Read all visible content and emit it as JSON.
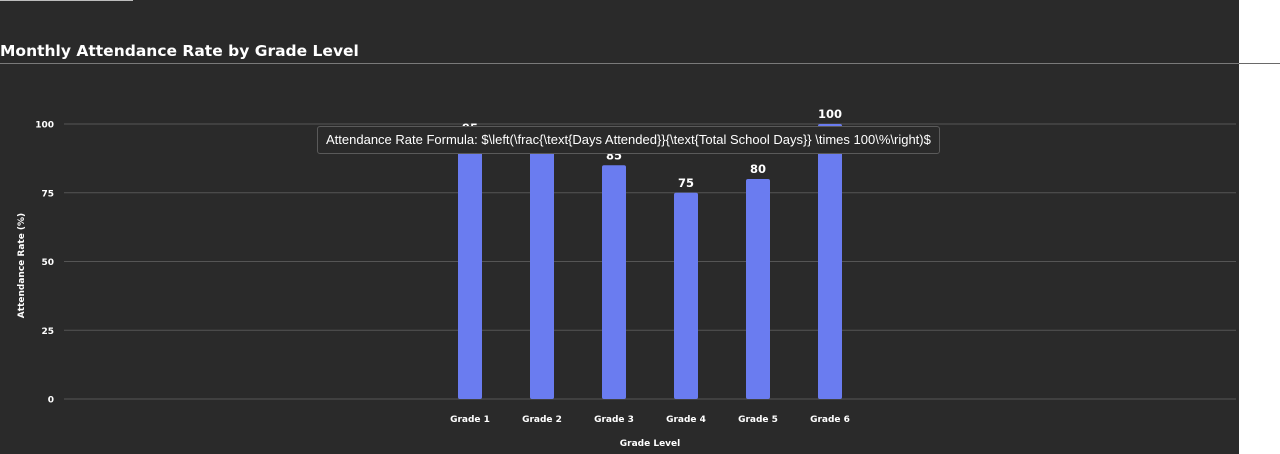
{
  "title": "Monthly Attendance Rate by Grade Level",
  "tooltip": "Attendance Rate Formula: $\\left(\\frac{\\text{Days Attended}}{\\text{Total School Days}} \\times 100\\%\\right)$",
  "colors": {
    "background": "#2a2a2a",
    "bar": "#6a7cf0",
    "grid": "#555555",
    "text": "#ffffff"
  },
  "chart_data": {
    "type": "bar",
    "categories": [
      "Grade 1",
      "Grade 2",
      "Grade 3",
      "Grade 4",
      "Grade 5",
      "Grade 6"
    ],
    "values": [
      95,
      92,
      85,
      75,
      80,
      100
    ],
    "title": "Monthly Attendance Rate by Grade Level",
    "xlabel": "Grade Level",
    "ylabel": "Attendance Rate (%)",
    "ylim": [
      0,
      100
    ],
    "yticks": [
      0,
      25,
      50,
      75,
      100
    ],
    "grid": true,
    "legend": "none"
  }
}
